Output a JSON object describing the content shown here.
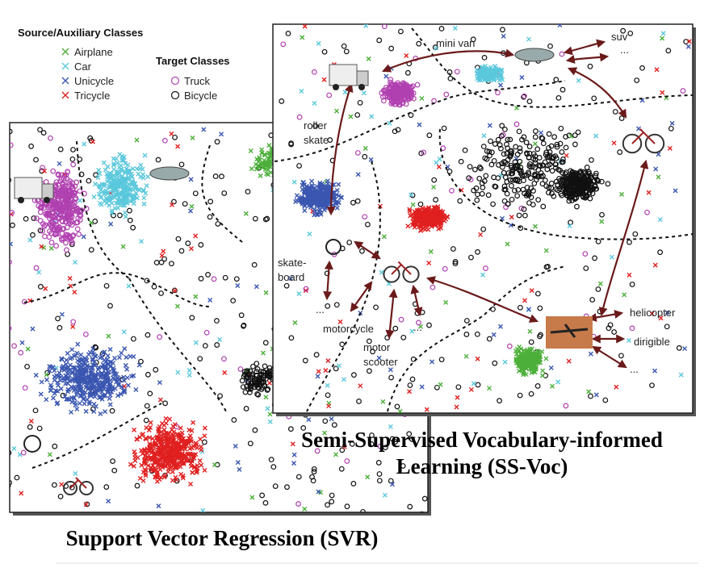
{
  "legend": {
    "source_title": "Source/Auxiliary Classes",
    "source_items": [
      {
        "label": "Airplane",
        "color": "#4caf3a"
      },
      {
        "label": "Car",
        "color": "#5bc8dc"
      },
      {
        "label": "Unicycle",
        "color": "#3a56b0"
      },
      {
        "label": "Tricycle",
        "color": "#e02020"
      }
    ],
    "target_title": "Target Classes",
    "target_items": [
      {
        "label": "Truck",
        "color": "#b040b0"
      },
      {
        "label": "Bicycle",
        "color": "#111111"
      }
    ]
  },
  "panels": [
    {
      "caption": [
        "Support Vector Regression (SVR)"
      ]
    },
    {
      "caption": [
        "Semi-Supervised Vocabulary-informed",
        "Learning (SS-Voc)"
      ],
      "labels": [
        [
          "mini van"
        ],
        [
          "suv"
        ],
        [
          "..."
        ],
        [
          "roller",
          "skate"
        ],
        [
          "skate-",
          "board"
        ],
        [
          "..."
        ],
        [
          "motorcycle"
        ],
        [
          "motor",
          "scooter"
        ],
        [
          "..."
        ],
        [
          "helicopter"
        ],
        [
          "dirigible"
        ],
        [
          "..."
        ]
      ]
    }
  ]
}
